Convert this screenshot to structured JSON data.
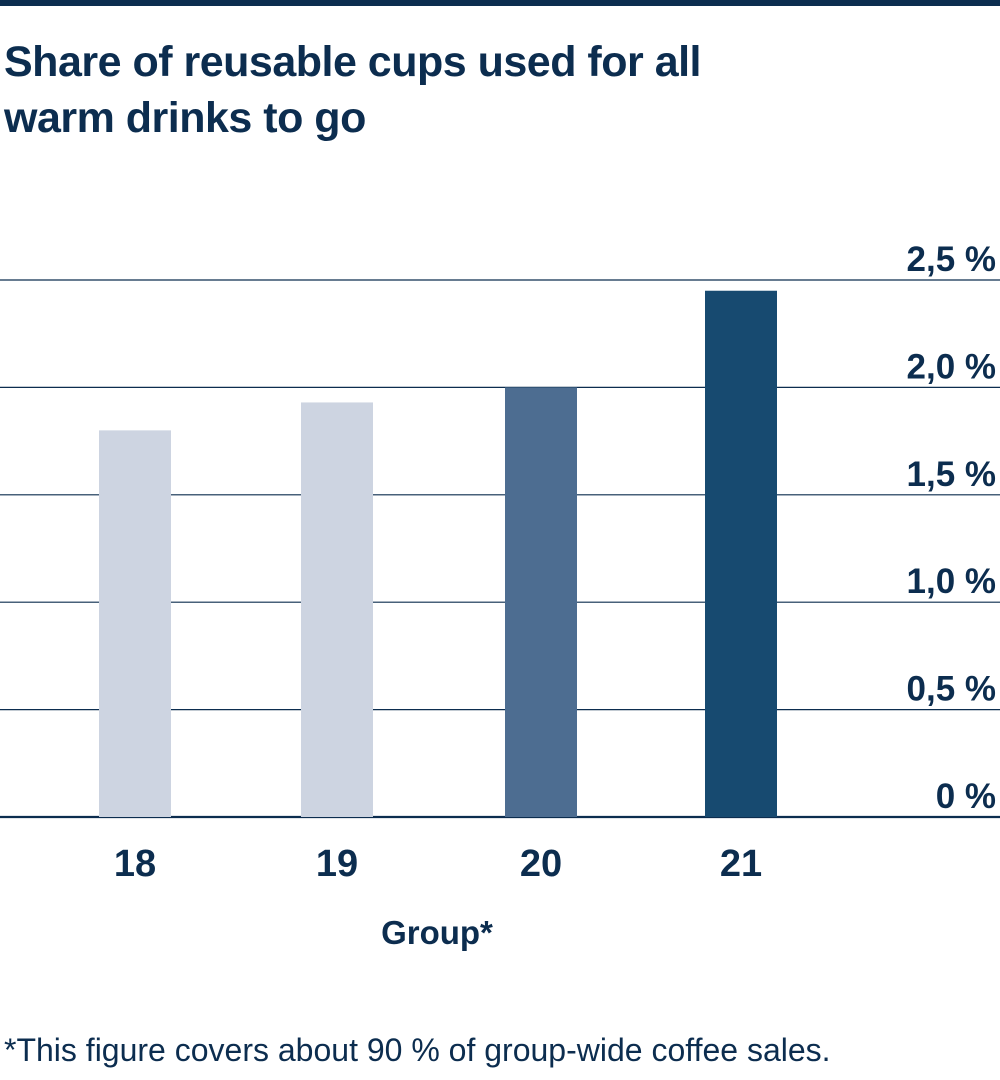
{
  "header": {
    "title": "Share of reusable cups used for all\nwarm drinks to go"
  },
  "footnote": "*This figure covers about 90 % of group-wide coffee sales.",
  "colors": {
    "text": "#0c2d4f",
    "gridline": "#0c2d4f",
    "bars": [
      "#cdd4e1",
      "#cdd4e1",
      "#4d6d91",
      "#174a70"
    ]
  },
  "chart_data": {
    "type": "bar",
    "categories": [
      "18",
      "19",
      "20",
      "21"
    ],
    "values": [
      1.8,
      1.93,
      2.0,
      2.45
    ],
    "xlabel": "Group*",
    "ylabel": "",
    "ylim": [
      0,
      2.5
    ],
    "yticks": [
      0,
      0.5,
      1.0,
      1.5,
      2.0,
      2.5
    ],
    "ytick_labels": [
      "0 %",
      "0,5 %",
      "1,0 %",
      "1,5 %",
      "2,0 %",
      "2,5 %"
    ],
    "y_axis_side": "right",
    "grid": true,
    "legend": "none"
  }
}
